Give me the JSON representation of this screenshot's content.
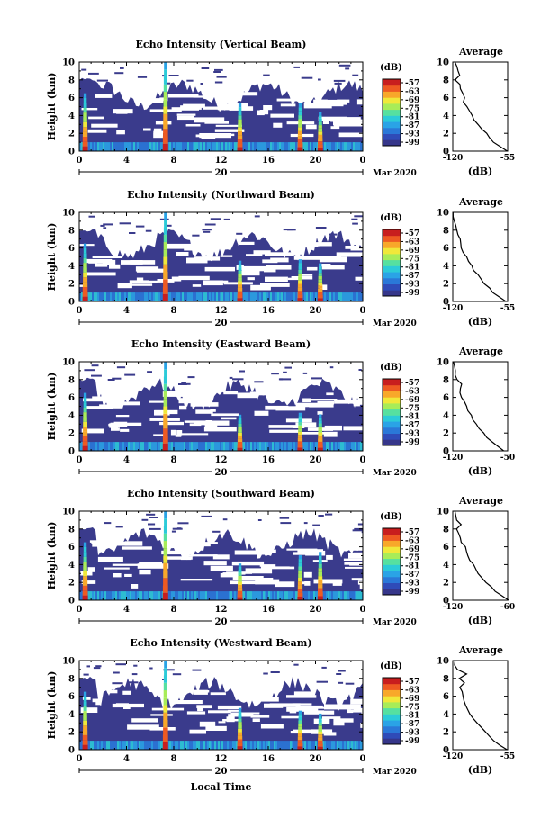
{
  "shared": {
    "ylabel": "Height (km)",
    "xticks": [
      "0",
      "4",
      "8",
      "12",
      "16",
      "20",
      "0"
    ],
    "yticks": [
      "0",
      "2",
      "4",
      "6",
      "8",
      "10"
    ],
    "day": "20",
    "month_year": "Mar 2020",
    "xlabel_bottom": "Local Time",
    "colorbar_label": "(dB)",
    "colorbar_ticks": [
      "-57",
      "-63",
      "-69",
      "-75",
      "-81",
      "-87",
      "-93",
      "-99"
    ],
    "avg_title": "Average",
    "avg_xlabel": "(dB)"
  },
  "colors": {
    "background": "#ffffff",
    "plot_fill": "#3a3b8c",
    "colormap": [
      "#36368a",
      "#2f4bb8",
      "#2a78d8",
      "#2aa3e6",
      "#2ccbd8",
      "#56e0a0",
      "#a8ec58",
      "#f0e83a",
      "#f8a82a",
      "#ee5a22",
      "#c81e1e"
    ]
  },
  "chart_data": [
    {
      "type": "heatmap",
      "title": "Echo Intensity (Vertical Beam)",
      "x_range": [
        0,
        24
      ],
      "y_range": [
        0,
        10
      ],
      "colorbar_range": [
        -99,
        -57
      ],
      "precip_events_hour": [
        0.5,
        7.3,
        13.6,
        18.7,
        20.4
      ],
      "avg_profile": {
        "xticks": [
          "-120",
          "-55"
        ],
        "xlim": [
          -120,
          -55
        ],
        "height_km": [
          0,
          0.5,
          1,
          1.5,
          2,
          2.5,
          3,
          3.5,
          4,
          4.5,
          5,
          5.5,
          6,
          6.5,
          7,
          7.5,
          8,
          8.5,
          9,
          9.5,
          10
        ],
        "db": [
          -56,
          -64,
          -71,
          -76,
          -80,
          -86,
          -90,
          -94,
          -97,
          -100,
          -103,
          -107,
          -106,
          -109,
          -110,
          -112,
          -118,
          -111,
          -114,
          -116,
          -118
        ]
      }
    },
    {
      "type": "heatmap",
      "title": "Echo Intensity (Northward Beam)",
      "x_range": [
        0,
        24
      ],
      "y_range": [
        0,
        10
      ],
      "colorbar_range": [
        -99,
        -57
      ],
      "precip_events_hour": [
        0.5,
        7.3,
        13.6,
        18.7,
        20.4
      ],
      "avg_profile": {
        "xticks": [
          "-120",
          "-55"
        ],
        "xlim": [
          -120,
          -55
        ],
        "height_km": [
          0,
          0.5,
          1,
          1.5,
          2,
          2.5,
          3,
          3.5,
          4,
          4.5,
          5,
          5.5,
          6,
          6.5,
          7,
          7.5,
          8,
          8.5,
          9,
          9.5,
          10
        ],
        "db": [
          -57,
          -65,
          -72,
          -77,
          -82,
          -87,
          -91,
          -95,
          -98,
          -101,
          -104,
          -107,
          -109,
          -111,
          -112,
          -114,
          -116,
          -117,
          -118,
          -119,
          -119
        ]
      }
    },
    {
      "type": "heatmap",
      "title": "Echo Intensity (Eastward Beam)",
      "x_range": [
        0,
        24
      ],
      "y_range": [
        0,
        10
      ],
      "colorbar_range": [
        -99,
        -57
      ],
      "precip_events_hour": [
        0.5,
        7.3,
        13.6,
        18.7,
        20.4
      ],
      "avg_profile": {
        "xticks": [
          "-120",
          "-50"
        ],
        "xlim": [
          -120,
          -50
        ],
        "height_km": [
          0,
          0.5,
          1,
          1.5,
          2,
          2.5,
          3,
          3.5,
          4,
          4.5,
          5,
          5.5,
          6,
          6.5,
          7,
          7.5,
          8,
          8.5,
          9,
          9.5,
          10
        ],
        "db": [
          -55,
          -63,
          -70,
          -76,
          -81,
          -86,
          -90,
          -94,
          -97,
          -100,
          -103,
          -106,
          -108,
          -110,
          -111,
          -108,
          -114,
          -116,
          -117,
          -118,
          -119
        ]
      }
    },
    {
      "type": "heatmap",
      "title": "Echo Intensity (Southward Beam)",
      "x_range": [
        0,
        24
      ],
      "y_range": [
        0,
        10
      ],
      "colorbar_range": [
        -99,
        -57
      ],
      "precip_events_hour": [
        0.5,
        7.3,
        13.6,
        18.7,
        20.4
      ],
      "avg_profile": {
        "xticks": [
          "-120",
          "-60"
        ],
        "xlim": [
          -120,
          -60
        ],
        "height_km": [
          0,
          0.5,
          1,
          1.5,
          2,
          2.5,
          3,
          3.5,
          4,
          4.5,
          5,
          5.5,
          6,
          6.5,
          7,
          7.5,
          8,
          8.5,
          9,
          9.5,
          10
        ],
        "db": [
          -60,
          -67,
          -73,
          -78,
          -83,
          -88,
          -92,
          -95,
          -98,
          -101,
          -104,
          -106,
          -107,
          -110,
          -112,
          -113,
          -116,
          -110,
          -115,
          -117,
          -118
        ]
      }
    },
    {
      "type": "heatmap",
      "title": "Echo Intensity (Westward Beam)",
      "x_range": [
        0,
        24
      ],
      "y_range": [
        0,
        10
      ],
      "colorbar_range": [
        -99,
        -57
      ],
      "precip_events_hour": [
        0.5,
        7.3,
        13.6,
        18.7,
        20.4
      ],
      "avg_profile": {
        "xticks": [
          "-120",
          "-55"
        ],
        "xlim": [
          -120,
          -55
        ],
        "height_km": [
          0,
          0.5,
          1,
          1.5,
          2,
          2.5,
          3,
          3.5,
          4,
          4.5,
          5,
          5.5,
          6,
          6.5,
          7,
          7.5,
          8,
          8.5,
          9,
          9.5,
          10
        ],
        "db": [
          -56,
          -64,
          -71,
          -77,
          -82,
          -87,
          -91,
          -95,
          -99,
          -102,
          -105,
          -107,
          -108,
          -109,
          -111,
          -107,
          -113,
          -104,
          -114,
          -117,
          -118
        ]
      }
    }
  ]
}
